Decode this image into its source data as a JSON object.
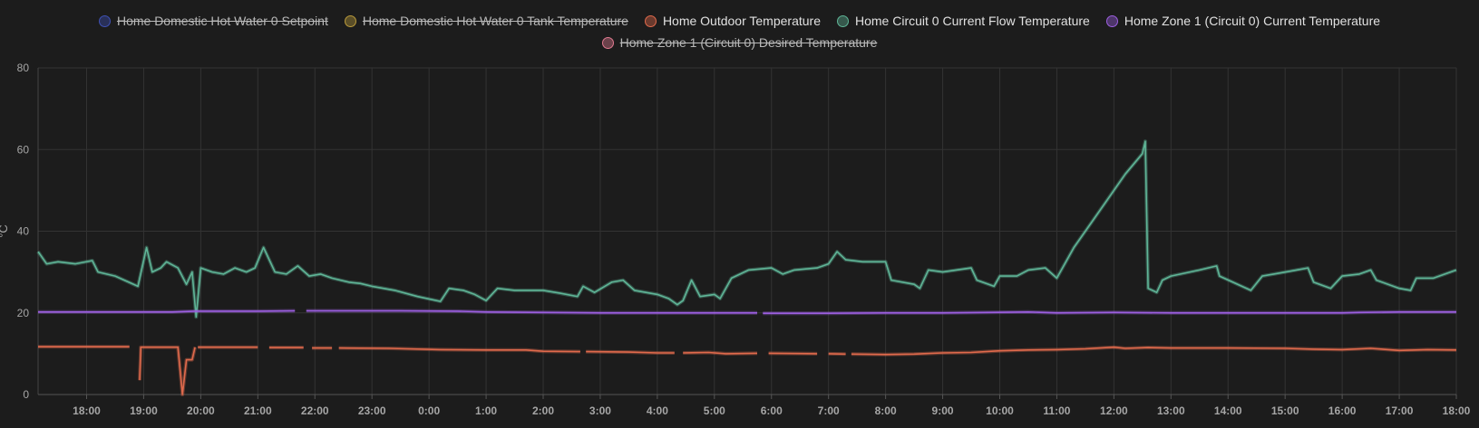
{
  "legend": [
    {
      "label": "Home Domestic Hot Water 0 Setpoint",
      "color": "#3f51b5",
      "hidden": true
    },
    {
      "label": "Home Domestic Hot Water 0 Tank Temperature",
      "color": "#b99a3b",
      "hidden": true
    },
    {
      "label": "Home Outdoor Temperature",
      "color": "#e06a4c",
      "hidden": false
    },
    {
      "label": "Home Circuit 0 Current Flow Temperature",
      "color": "#5fb597",
      "hidden": false
    },
    {
      "label": "Home Zone 1 (Circuit 0) Current Temperature",
      "color": "#9c5fe0",
      "hidden": false
    },
    {
      "label": "Home Zone 1 (Circuit 0) Desired Temperature",
      "color": "#e07a90",
      "hidden": true
    }
  ],
  "chart_data": {
    "type": "line",
    "xlabel": "",
    "ylabel": "°C",
    "ylim": [
      0,
      80
    ],
    "yticks": [
      "0",
      "20",
      "40",
      "60",
      "80"
    ],
    "xlim": [
      17.15,
      42.0
    ],
    "xticks": [
      {
        "h": 18,
        "label": "18:00"
      },
      {
        "h": 19,
        "label": "19:00"
      },
      {
        "h": 20,
        "label": "20:00"
      },
      {
        "h": 21,
        "label": "21:00"
      },
      {
        "h": 22,
        "label": "22:00"
      },
      {
        "h": 23,
        "label": "23:00"
      },
      {
        "h": 24,
        "label": "0:00"
      },
      {
        "h": 25,
        "label": "1:00"
      },
      {
        "h": 26,
        "label": "2:00"
      },
      {
        "h": 27,
        "label": "3:00"
      },
      {
        "h": 28,
        "label": "4:00"
      },
      {
        "h": 29,
        "label": "5:00"
      },
      {
        "h": 30,
        "label": "6:00"
      },
      {
        "h": 31,
        "label": "7:00"
      },
      {
        "h": 32,
        "label": "8:00"
      },
      {
        "h": 33,
        "label": "9:00"
      },
      {
        "h": 34,
        "label": "10:00"
      },
      {
        "h": 35,
        "label": "11:00"
      },
      {
        "h": 36,
        "label": "12:00"
      },
      {
        "h": 37,
        "label": "13:00"
      },
      {
        "h": 38,
        "label": "14:00"
      },
      {
        "h": 39,
        "label": "15:00"
      },
      {
        "h": 40,
        "label": "16:00"
      },
      {
        "h": 41,
        "label": "17:00"
      },
      {
        "h": 42,
        "label": "18:00"
      }
    ],
    "grid": true,
    "legend_position": "top-center",
    "series": [
      {
        "name": "Home Outdoor Temperature",
        "color": "#e06a4c",
        "segments": [
          [
            [
              17.15,
              11.7
            ],
            [
              18.75,
              11.7
            ]
          ],
          [
            [
              18.93,
              3.5
            ],
            [
              18.95,
              11.6
            ],
            [
              19.6,
              11.6
            ],
            [
              19.68,
              0
            ],
            [
              19.75,
              8.5
            ],
            [
              19.85,
              8.5
            ],
            [
              19.9,
              11.6
            ]
          ],
          [
            [
              19.95,
              11.6
            ],
            [
              21.0,
              11.6
            ]
          ],
          [
            [
              21.2,
              11.5
            ],
            [
              21.8,
              11.5
            ]
          ],
          [
            [
              21.95,
              11.4
            ],
            [
              22.3,
              11.4
            ]
          ],
          [
            [
              22.42,
              11.4
            ],
            [
              23.3,
              11.3
            ],
            [
              24.2,
              11.0
            ],
            [
              25.0,
              10.9
            ],
            [
              25.7,
              10.9
            ],
            [
              26.0,
              10.6
            ],
            [
              26.65,
              10.5
            ]
          ],
          [
            [
              26.75,
              10.5
            ],
            [
              27.5,
              10.4
            ],
            [
              28.0,
              10.2
            ],
            [
              28.3,
              10.2
            ]
          ],
          [
            [
              28.45,
              10.2
            ],
            [
              28.9,
              10.3
            ],
            [
              29.2,
              10.0
            ],
            [
              29.75,
              10.1
            ]
          ],
          [
            [
              29.95,
              10.1
            ],
            [
              30.8,
              10.0
            ]
          ],
          [
            [
              31.0,
              10.0
            ],
            [
              31.3,
              9.9
            ]
          ],
          [
            [
              31.4,
              9.9
            ],
            [
              32.0,
              9.8
            ],
            [
              32.5,
              9.9
            ],
            [
              33.0,
              10.2
            ],
            [
              33.5,
              10.3
            ],
            [
              34.0,
              10.7
            ],
            [
              34.5,
              10.9
            ],
            [
              35.0,
              11.0
            ],
            [
              35.5,
              11.2
            ],
            [
              36.0,
              11.6
            ],
            [
              36.2,
              11.3
            ],
            [
              36.6,
              11.5
            ],
            [
              37.0,
              11.4
            ],
            [
              38.0,
              11.4
            ],
            [
              39.0,
              11.3
            ],
            [
              39.5,
              11.1
            ],
            [
              40.0,
              11.0
            ],
            [
              40.5,
              11.3
            ],
            [
              41.0,
              10.8
            ],
            [
              41.5,
              11.0
            ],
            [
              42.0,
              10.9
            ]
          ]
        ]
      },
      {
        "name": "Home Circuit 0 Current Flow Temperature",
        "color": "#5fb597",
        "segments": [
          [
            [
              17.15,
              35.0
            ],
            [
              17.3,
              32.0
            ],
            [
              17.5,
              32.5
            ],
            [
              17.8,
              32.0
            ],
            [
              18.1,
              32.8
            ],
            [
              18.2,
              30.0
            ],
            [
              18.5,
              29.0
            ],
            [
              18.9,
              26.5
            ],
            [
              19.05,
              36.0
            ],
            [
              19.15,
              30.0
            ],
            [
              19.3,
              31.0
            ],
            [
              19.4,
              32.5
            ],
            [
              19.6,
              31.0
            ],
            [
              19.75,
              27.0
            ],
            [
              19.85,
              30.0
            ],
            [
              19.92,
              19.0
            ],
            [
              20.0,
              31.0
            ],
            [
              20.2,
              30.0
            ],
            [
              20.4,
              29.5
            ],
            [
              20.6,
              31.0
            ],
            [
              20.8,
              30.0
            ],
            [
              20.95,
              31.0
            ],
            [
              21.1,
              36.0
            ],
            [
              21.3,
              30.0
            ],
            [
              21.5,
              29.5
            ],
            [
              21.7,
              31.5
            ],
            [
              21.9,
              29.0
            ],
            [
              22.1,
              29.5
            ],
            [
              22.3,
              28.5
            ],
            [
              22.6,
              27.5
            ],
            [
              22.8,
              27.2
            ],
            [
              23.0,
              26.5
            ],
            [
              23.4,
              25.5
            ],
            [
              23.8,
              24.0
            ],
            [
              24.2,
              22.8
            ],
            [
              24.35,
              26.0
            ],
            [
              24.6,
              25.5
            ],
            [
              24.8,
              24.5
            ],
            [
              25.0,
              23.0
            ],
            [
              25.2,
              26.0
            ],
            [
              25.5,
              25.5
            ],
            [
              26.0,
              25.5
            ],
            [
              26.3,
              24.8
            ],
            [
              26.6,
              24.0
            ],
            [
              26.7,
              26.5
            ],
            [
              26.9,
              25.0
            ],
            [
              27.2,
              27.5
            ],
            [
              27.4,
              28.0
            ],
            [
              27.6,
              25.5
            ],
            [
              28.0,
              24.5
            ],
            [
              28.2,
              23.5
            ],
            [
              28.35,
              22.0
            ],
            [
              28.45,
              23.0
            ],
            [
              28.6,
              28.0
            ],
            [
              28.75,
              24.0
            ],
            [
              29.0,
              24.5
            ],
            [
              29.1,
              23.5
            ],
            [
              29.3,
              28.5
            ],
            [
              29.6,
              30.5
            ],
            [
              30.0,
              31.0
            ],
            [
              30.2,
              29.5
            ],
            [
              30.4,
              30.5
            ],
            [
              30.8,
              31.0
            ],
            [
              31.0,
              32.0
            ],
            [
              31.15,
              35.0
            ],
            [
              31.3,
              33.0
            ],
            [
              31.6,
              32.5
            ],
            [
              32.0,
              32.5
            ],
            [
              32.1,
              28.0
            ],
            [
              32.5,
              27.0
            ],
            [
              32.6,
              26.0
            ],
            [
              32.75,
              30.5
            ],
            [
              33.0,
              30.0
            ],
            [
              33.5,
              31.0
            ],
            [
              33.6,
              28.0
            ],
            [
              33.9,
              26.5
            ],
            [
              34.0,
              29.0
            ],
            [
              34.3,
              29.0
            ],
            [
              34.5,
              30.5
            ],
            [
              34.8,
              31.0
            ],
            [
              35.0,
              28.5
            ],
            [
              35.3,
              36.0
            ],
            [
              35.6,
              42.0
            ],
            [
              35.9,
              48.0
            ],
            [
              36.2,
              54.0
            ],
            [
              36.5,
              59.0
            ],
            [
              36.55,
              62.0
            ],
            [
              36.6,
              26.0
            ],
            [
              36.75,
              25.0
            ],
            [
              36.85,
              28.0
            ],
            [
              37.0,
              29.0
            ],
            [
              37.5,
              30.5
            ],
            [
              37.8,
              31.5
            ],
            [
              37.85,
              29.0
            ],
            [
              38.4,
              25.5
            ],
            [
              38.6,
              29.0
            ],
            [
              38.8,
              29.5
            ],
            [
              39.2,
              30.5
            ],
            [
              39.4,
              31.0
            ],
            [
              39.5,
              27.5
            ],
            [
              39.8,
              26.0
            ],
            [
              40.0,
              29.0
            ],
            [
              40.3,
              29.5
            ],
            [
              40.5,
              30.5
            ],
            [
              40.6,
              28.0
            ],
            [
              41.0,
              26.0
            ],
            [
              41.2,
              25.5
            ],
            [
              41.3,
              28.5
            ],
            [
              41.6,
              28.5
            ],
            [
              42.0,
              30.5
            ]
          ]
        ]
      },
      {
        "name": "Home Zone 1 (Circuit 0) Current Temperature",
        "color": "#9c5fe0",
        "segments": [
          [
            [
              17.15,
              20.2
            ],
            [
              19.5,
              20.2
            ],
            [
              19.9,
              20.4
            ],
            [
              21.0,
              20.4
            ],
            [
              21.65,
              20.5
            ]
          ],
          [
            [
              21.85,
              20.5
            ],
            [
              23.5,
              20.5
            ],
            [
              24.5,
              20.4
            ],
            [
              25.0,
              20.2
            ],
            [
              26.0,
              20.1
            ],
            [
              27.0,
              20.0
            ],
            [
              28.0,
              20.0
            ],
            [
              29.0,
              20.0
            ],
            [
              29.75,
              20.0
            ]
          ],
          [
            [
              29.85,
              19.9
            ],
            [
              31.0,
              19.9
            ],
            [
              32.0,
              20.0
            ],
            [
              33.0,
              20.0
            ],
            [
              33.8,
              20.1
            ],
            [
              34.5,
              20.2
            ],
            [
              35.0,
              20.0
            ],
            [
              36.0,
              20.1
            ],
            [
              37.0,
              20.0
            ],
            [
              38.0,
              20.0
            ],
            [
              39.0,
              20.0
            ],
            [
              40.0,
              20.0
            ],
            [
              40.3,
              20.1
            ],
            [
              41.0,
              20.2
            ],
            [
              42.0,
              20.2
            ]
          ]
        ]
      }
    ]
  }
}
